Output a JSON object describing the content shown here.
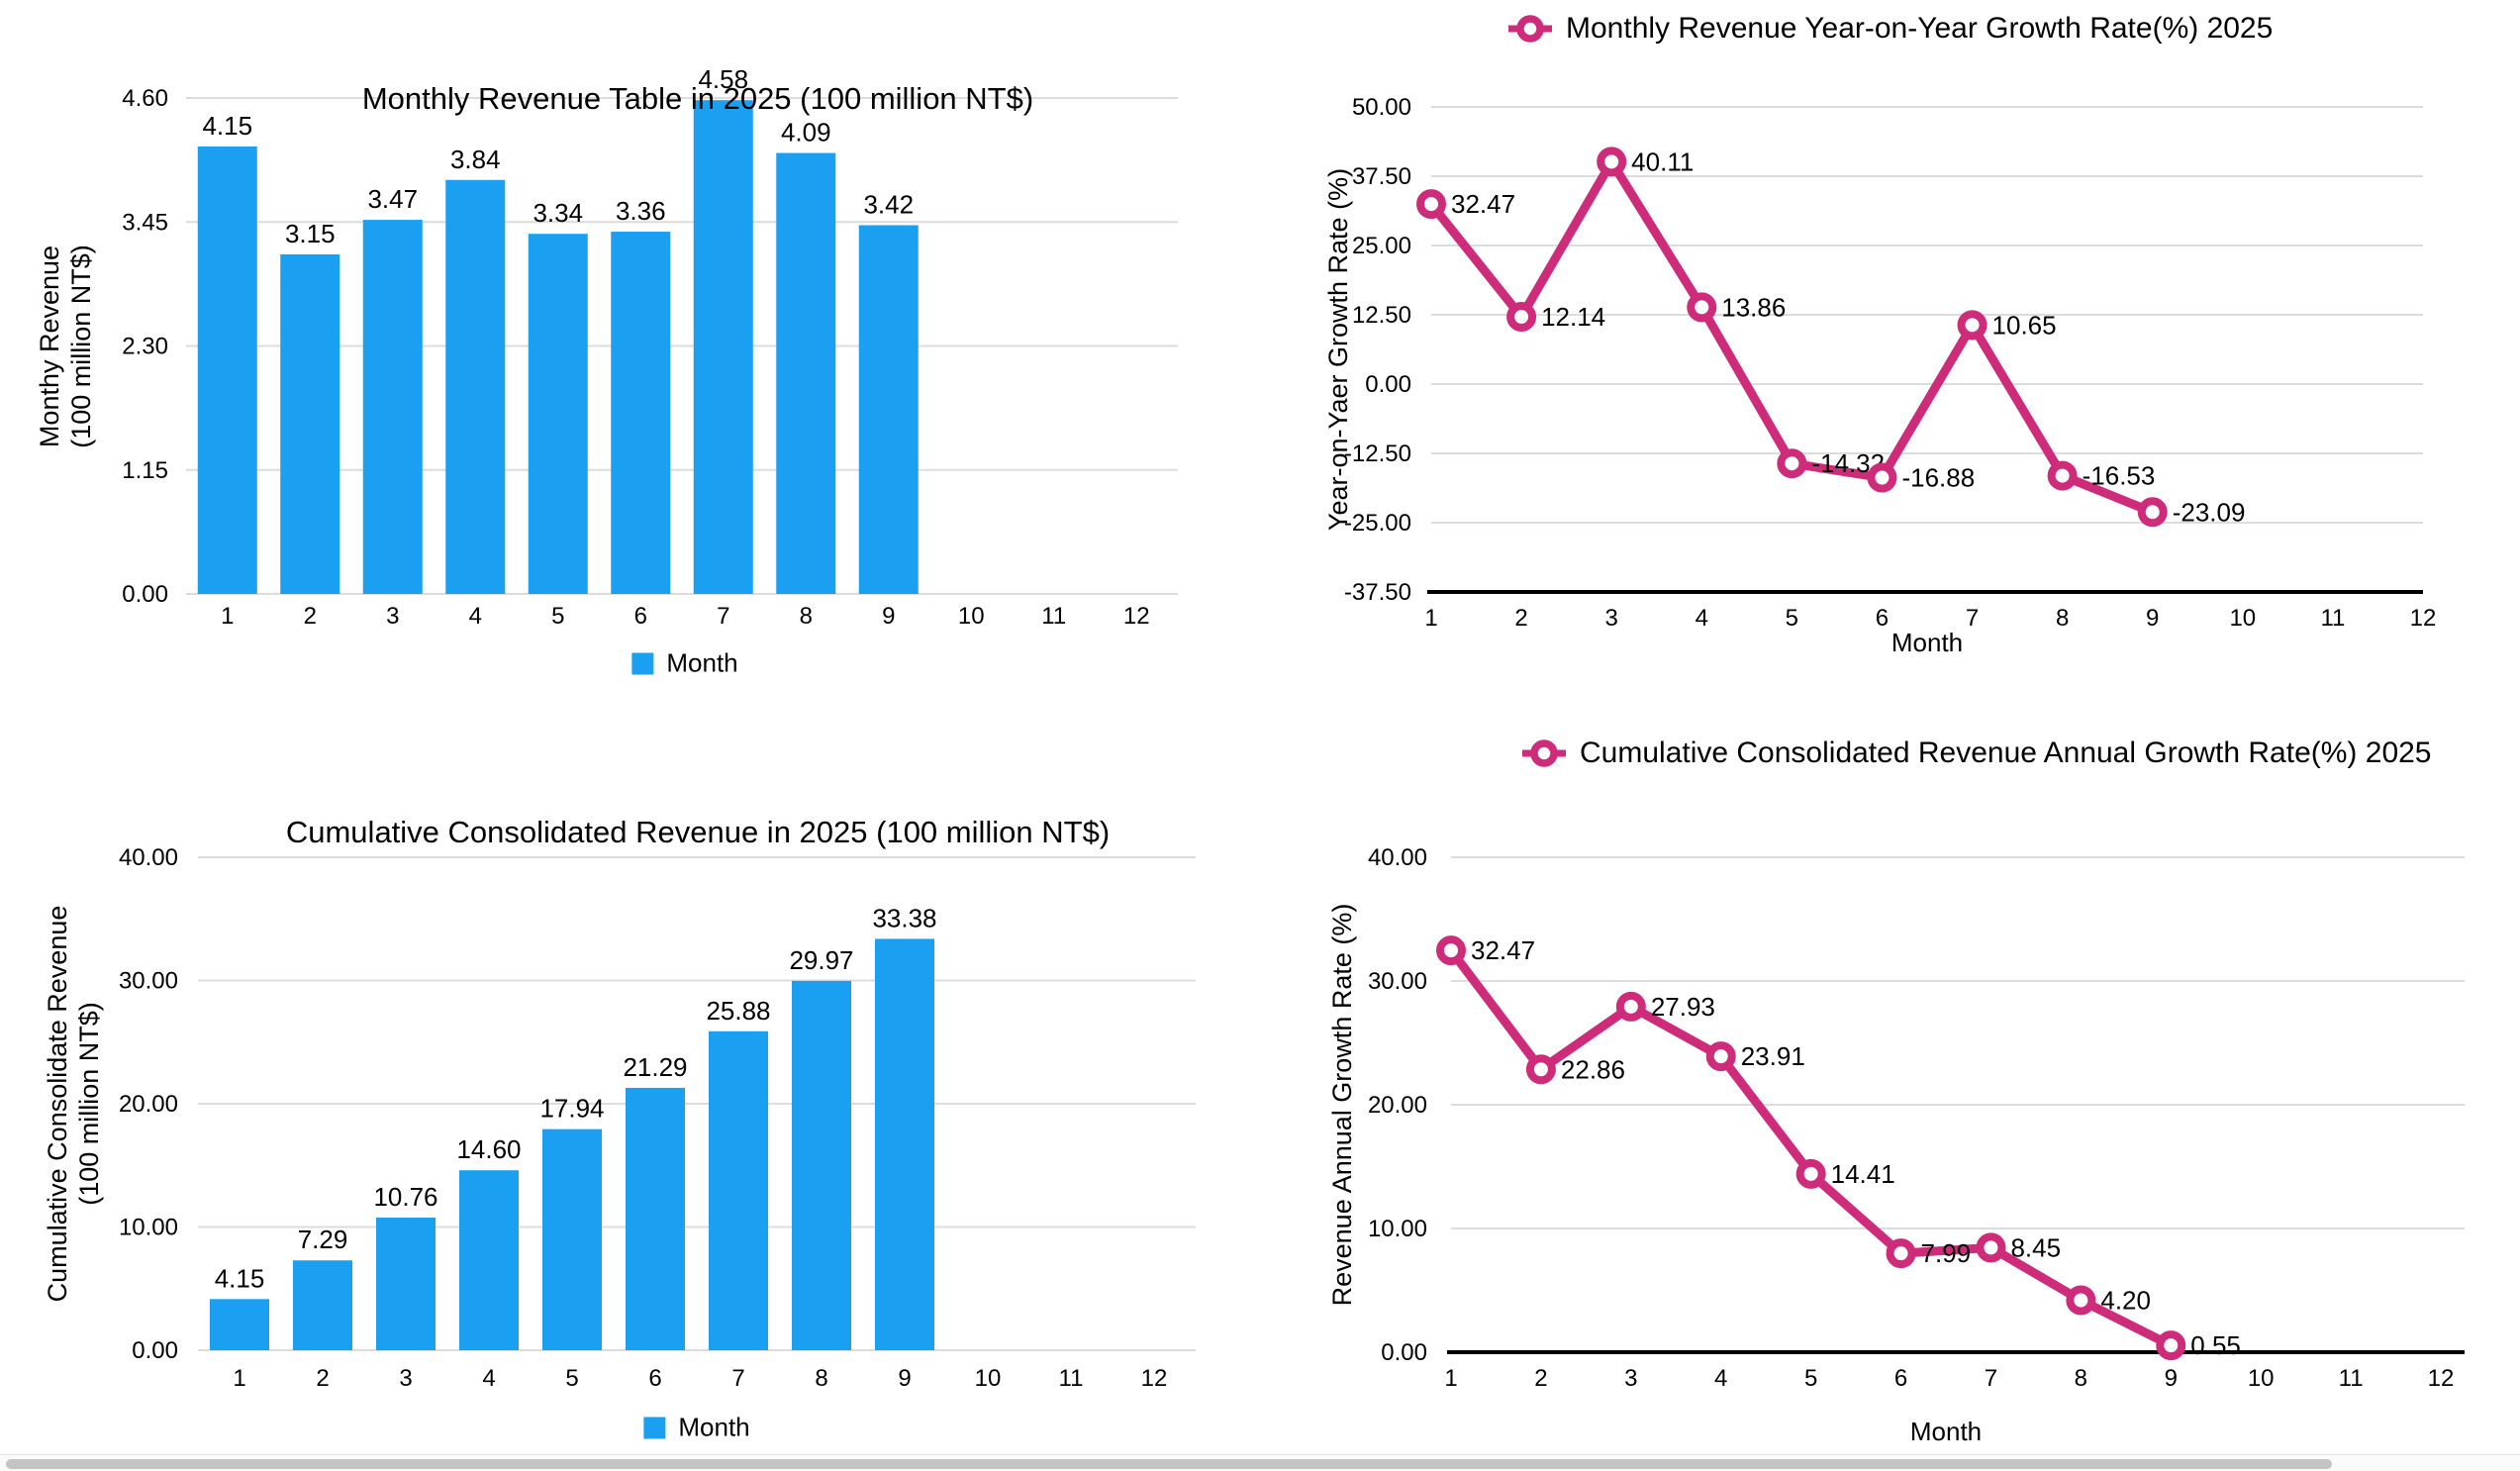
{
  "colors": {
    "bar_blue": "#1A9FF1",
    "line_pink": "#CE2C7A",
    "gridline": "#DCDCDC",
    "axis_black": "#000000",
    "label_black": "#000000",
    "scrollbar_thumb": "#C4C4C4",
    "scrollbar_track": "#FAFAFA"
  },
  "scrollbar": {
    "orientation": "horizontal"
  },
  "chart_data": [
    {
      "type": "bar",
      "title": "Monthly Revenue Table in 2025 (100 million NT$)",
      "y_axis_title_lines": [
        "Monthy Revenue",
        "(100 million NT$)"
      ],
      "legend_label": "Month",
      "legend_position": "bottom",
      "grid": true,
      "categories": [
        "1",
        "2",
        "3",
        "4",
        "5",
        "6",
        "7",
        "8",
        "9",
        "10",
        "11",
        "12"
      ],
      "values": [
        4.15,
        3.15,
        3.47,
        3.84,
        3.34,
        3.36,
        4.58,
        4.09,
        3.42
      ],
      "value_labels": [
        "4.15",
        "3.15",
        "3.47",
        "3.84",
        "3.34",
        "3.36",
        "4.58",
        "4.09",
        "3.42"
      ],
      "y_ticks": [
        {
          "label": "0.00",
          "value": 0
        },
        {
          "label": "1.15",
          "value": 1.15
        },
        {
          "label": "2.30",
          "value": 2.3
        },
        {
          "label": "3.45",
          "value": 3.45
        },
        {
          "label": "4.60",
          "value": 4.6
        }
      ],
      "ylim": [
        0,
        4.6
      ],
      "color": "#1A9FF1"
    },
    {
      "type": "line",
      "title": "Monthly Revenue Year-on-Year Growth Rate(%) 2025",
      "y_axis_title_lines": [
        "Year-on-Yaer Growth Rate (%)"
      ],
      "x_axis_title": "Month",
      "legend_position": "top",
      "grid": true,
      "categories": [
        "1",
        "2",
        "3",
        "4",
        "5",
        "6",
        "7",
        "8",
        "9",
        "10",
        "11",
        "12"
      ],
      "values": [
        32.47,
        12.14,
        40.11,
        13.86,
        -14.32,
        -16.88,
        10.65,
        -16.53,
        -23.09
      ],
      "value_labels": [
        "32.47",
        "12.14",
        "40.11",
        "13.86",
        "-14.32",
        "-16.88",
        "10.65",
        "-16.53",
        "-23.09"
      ],
      "y_ticks": [
        {
          "label": "50.00",
          "value": 50
        },
        {
          "label": "37.50",
          "value": 37.5
        },
        {
          "label": "25.00",
          "value": 25
        },
        {
          "label": "12.50",
          "value": 12.5
        },
        {
          "label": "0.00",
          "value": 0
        },
        {
          "label": "-12.50",
          "value": -12.5
        },
        {
          "label": "-25.00",
          "value": -25
        },
        {
          "label": "-37.50",
          "value": -37.5
        }
      ],
      "ylim": [
        -37.5,
        50
      ],
      "color": "#CE2C7A"
    },
    {
      "type": "bar",
      "title": "Cumulative Consolidated Revenue in 2025 (100 million NT$)",
      "y_axis_title_lines": [
        "Cumulative Consolidate Revenue",
        "(100 million NT$)"
      ],
      "legend_label": "Month",
      "legend_position": "bottom",
      "grid": true,
      "categories": [
        "1",
        "2",
        "3",
        "4",
        "5",
        "6",
        "7",
        "8",
        "9",
        "10",
        "11",
        "12"
      ],
      "values": [
        4.15,
        7.29,
        10.76,
        14.6,
        17.94,
        21.29,
        25.88,
        29.97,
        33.38
      ],
      "value_labels": [
        "4.15",
        "7.29",
        "10.76",
        "14.60",
        "17.94",
        "21.29",
        "25.88",
        "29.97",
        "33.38"
      ],
      "y_ticks": [
        {
          "label": "0.00",
          "value": 0
        },
        {
          "label": "10.00",
          "value": 10
        },
        {
          "label": "20.00",
          "value": 20
        },
        {
          "label": "30.00",
          "value": 30
        },
        {
          "label": "40.00",
          "value": 40
        }
      ],
      "ylim": [
        0,
        40
      ],
      "color": "#1A9FF1"
    },
    {
      "type": "line",
      "title": "Cumulative Consolidated Revenue Annual Growth Rate(%) 2025",
      "y_axis_title_lines": [
        "Revenue Annual Growth Rate (%)"
      ],
      "x_axis_title": "Month",
      "legend_position": "top",
      "grid": true,
      "categories": [
        "1",
        "2",
        "3",
        "4",
        "5",
        "6",
        "7",
        "8",
        "9",
        "10",
        "11",
        "12"
      ],
      "values": [
        32.47,
        22.86,
        27.93,
        23.91,
        14.41,
        7.99,
        8.45,
        4.2,
        0.55
      ],
      "value_labels": [
        "32.47",
        "22.86",
        "27.93",
        "23.91",
        "14.41",
        "7.99",
        "8.45",
        "4.20",
        "0.55"
      ],
      "y_ticks": [
        {
          "label": "40.00",
          "value": 40
        },
        {
          "label": "30.00",
          "value": 30
        },
        {
          "label": "20.00",
          "value": 20
        },
        {
          "label": "10.00",
          "value": 10
        },
        {
          "label": "0.00",
          "value": 0
        }
      ],
      "ylim": [
        0,
        40
      ],
      "color": "#CE2C7A"
    }
  ]
}
